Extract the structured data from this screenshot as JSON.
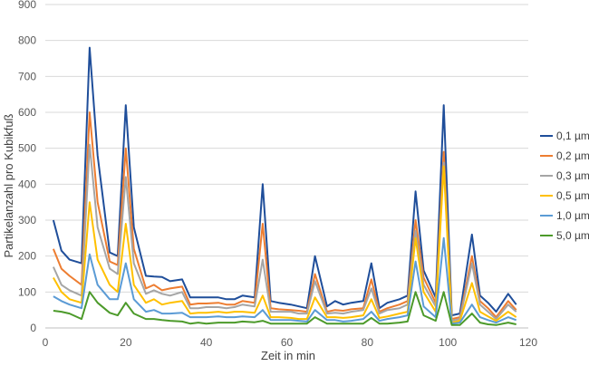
{
  "chart_data": {
    "type": "line",
    "title": "",
    "xlabel": "Zeit in min",
    "ylabel": "Partikelanzahl pro Kubikfuß",
    "xlim": [
      0,
      120
    ],
    "ylim": [
      0,
      900
    ],
    "xticks": [
      0,
      20,
      40,
      60,
      80,
      100,
      120
    ],
    "yticks": [
      0,
      100,
      200,
      300,
      400,
      500,
      600,
      700,
      800,
      900
    ],
    "grid": "horizontal",
    "legend_position": "right",
    "x": [
      2,
      4,
      6,
      9,
      11,
      13,
      16,
      18,
      20,
      22,
      25,
      27,
      29,
      31,
      34,
      36,
      38,
      40,
      43,
      45,
      47,
      49,
      52,
      54,
      56,
      58,
      61,
      63,
      65,
      67,
      70,
      72,
      74,
      76,
      79,
      81,
      83,
      85,
      88,
      90,
      92,
      94,
      97,
      99,
      101,
      103,
      106,
      108,
      110,
      112,
      115,
      117
    ],
    "series": [
      {
        "name": "0,1 µm",
        "color": "#1f4e9a",
        "values": [
          300,
          215,
          190,
          180,
          780,
          480,
          210,
          200,
          620,
          280,
          145,
          143,
          142,
          130,
          135,
          85,
          85,
          85,
          85,
          80,
          80,
          90,
          85,
          400,
          75,
          70,
          65,
          60,
          55,
          200,
          60,
          75,
          65,
          70,
          75,
          180,
          55,
          70,
          80,
          90,
          380,
          160,
          85,
          620,
          35,
          40,
          260,
          90,
          70,
          45,
          95,
          65
        ]
      },
      {
        "name": "0,2 µm",
        "color": "#ed7d31",
        "values": [
          220,
          165,
          145,
          120,
          600,
          350,
          185,
          175,
          500,
          220,
          110,
          120,
          105,
          110,
          115,
          65,
          68,
          68,
          70,
          65,
          65,
          75,
          70,
          290,
          55,
          52,
          50,
          48,
          45,
          150,
          45,
          50,
          48,
          52,
          55,
          135,
          45,
          55,
          65,
          75,
          300,
          140,
          70,
          490,
          25,
          30,
          200,
          75,
          55,
          30,
          75,
          50
        ]
      },
      {
        "name": "0,3 µm",
        "color": "#a5a5a5",
        "values": [
          170,
          120,
          105,
          90,
          510,
          280,
          165,
          150,
          420,
          180,
          95,
          105,
          95,
          90,
          100,
          55,
          55,
          58,
          58,
          55,
          58,
          65,
          60,
          190,
          45,
          45,
          45,
          40,
          40,
          130,
          40,
          42,
          40,
          45,
          50,
          110,
          40,
          50,
          55,
          65,
          270,
          120,
          60,
          460,
          20,
          25,
          180,
          65,
          45,
          25,
          65,
          45
        ]
      },
      {
        "name": "0,5 µm",
        "color": "#ffc000",
        "values": [
          140,
          100,
          80,
          70,
          350,
          190,
          120,
          100,
          290,
          120,
          70,
          80,
          65,
          70,
          75,
          40,
          42,
          42,
          45,
          42,
          45,
          45,
          42,
          90,
          30,
          30,
          28,
          25,
          25,
          85,
          30,
          30,
          28,
          30,
          35,
          80,
          28,
          32,
          40,
          45,
          250,
          100,
          45,
          450,
          15,
          20,
          125,
          45,
          32,
          20,
          45,
          30
        ]
      },
      {
        "name": "1,0 µm",
        "color": "#5b9bd5",
        "values": [
          88,
          75,
          65,
          55,
          205,
          120,
          80,
          80,
          180,
          80,
          45,
          50,
          40,
          40,
          42,
          30,
          30,
          30,
          32,
          30,
          30,
          32,
          30,
          50,
          22,
          22,
          22,
          20,
          18,
          50,
          22,
          22,
          18,
          20,
          25,
          45,
          20,
          25,
          30,
          35,
          185,
          60,
          30,
          250,
          12,
          15,
          65,
          30,
          22,
          15,
          30,
          22
        ]
      },
      {
        "name": "5,0 µm",
        "color": "#4c9a2a",
        "values": [
          48,
          45,
          40,
          25,
          100,
          70,
          42,
          35,
          70,
          40,
          25,
          25,
          22,
          20,
          18,
          12,
          15,
          12,
          15,
          15,
          15,
          18,
          16,
          20,
          12,
          12,
          12,
          12,
          12,
          30,
          12,
          12,
          12,
          12,
          12,
          28,
          12,
          12,
          15,
          18,
          100,
          35,
          20,
          100,
          8,
          8,
          40,
          15,
          10,
          8,
          15,
          10
        ]
      }
    ]
  }
}
